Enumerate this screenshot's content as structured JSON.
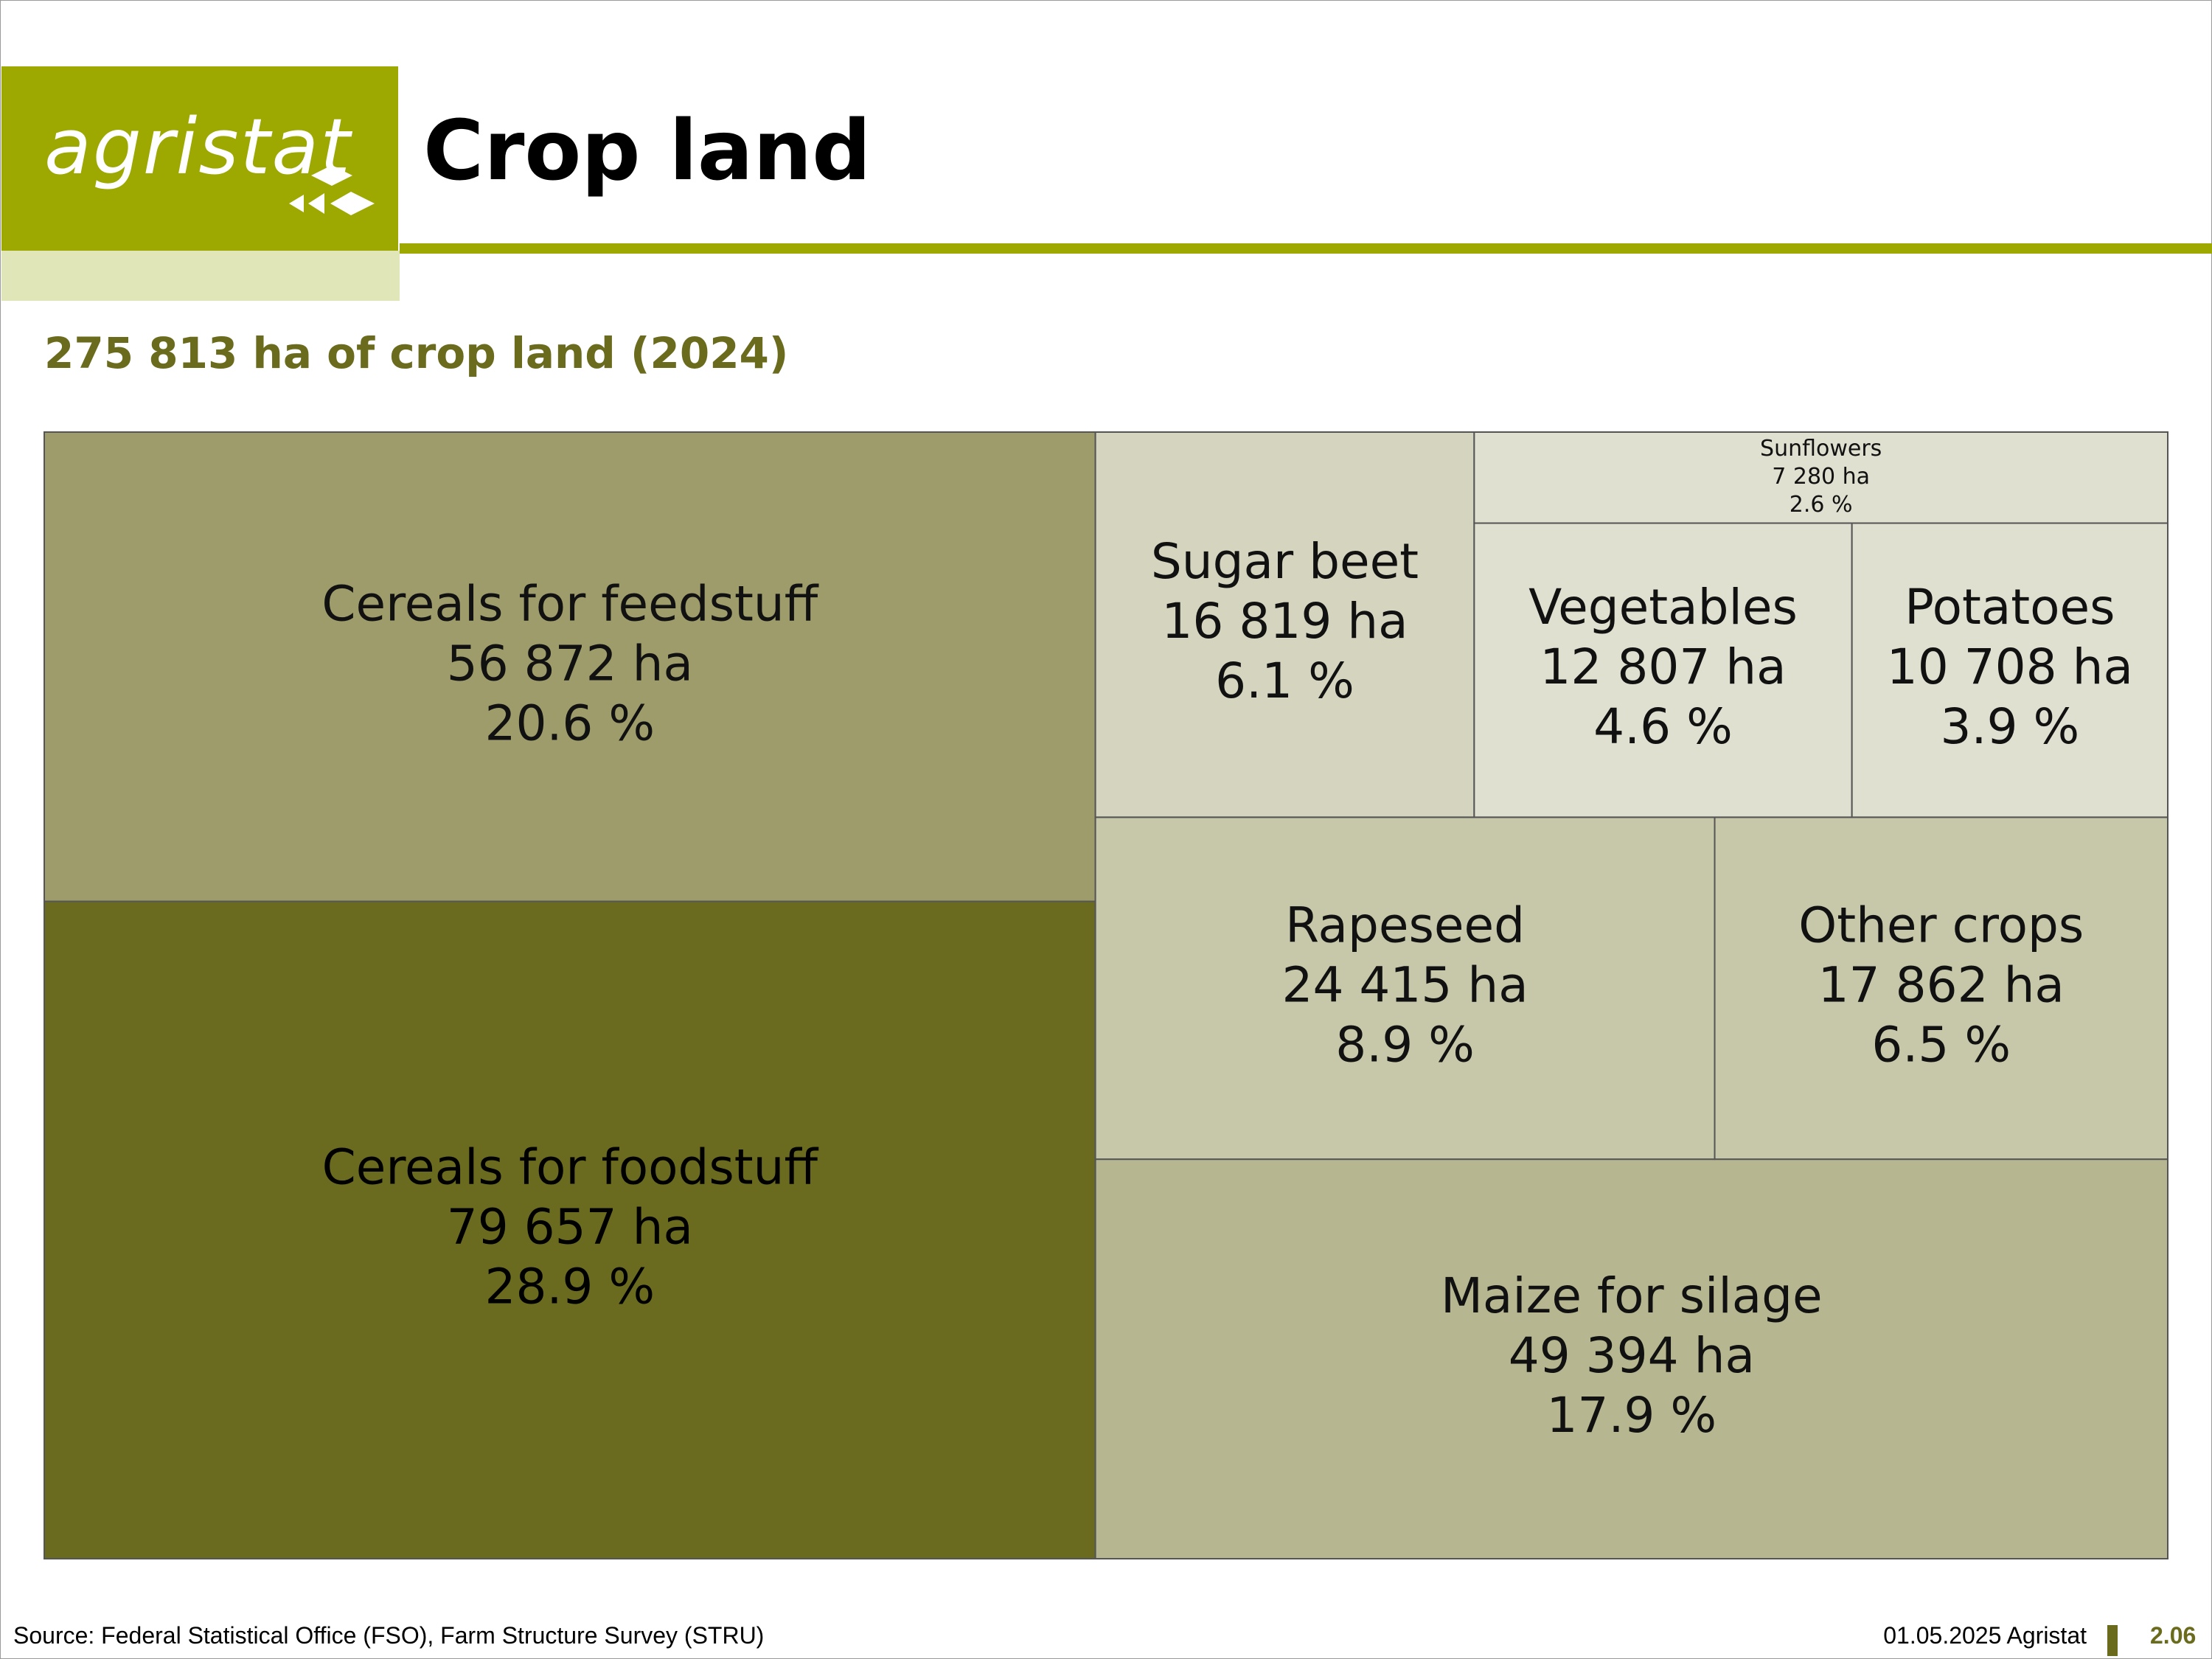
{
  "header": {
    "logo_text": "agristat",
    "title": "Crop land",
    "subtitle": "275 813 ha of crop land (2024)"
  },
  "colors": {
    "brand": "#9da800",
    "brand_light": "#e1e6b8",
    "subtitle": "#6b6b1e",
    "cereals_food": "#6b6b1f",
    "cereals_feed": "#9d9c6a",
    "maize": "#b6b690",
    "rapeseed_other": "#c7c7aa",
    "sugar_beet": "#d4d4bf",
    "small_crops": "#e0e0d1"
  },
  "chart_data": {
    "type": "treemap",
    "total_ha": 275813,
    "unit": "ha",
    "year": 2024,
    "items": [
      {
        "label": "Cereals for foodstuff",
        "value_text": "79 657 ha",
        "pct_text": "28.9 %",
        "value": 79657,
        "pct": 28.9,
        "color": "#6b6b1f"
      },
      {
        "label": "Cereals for feedstuff",
        "value_text": "56 872 ha",
        "pct_text": "20.6 %",
        "value": 56872,
        "pct": 20.6,
        "color": "#9d9c6a"
      },
      {
        "label": "Maize for silage",
        "value_text": "49 394 ha",
        "pct_text": "17.9 %",
        "value": 49394,
        "pct": 17.9,
        "color": "#b6b690"
      },
      {
        "label": "Rapeseed",
        "value_text": "24 415 ha",
        "pct_text": "8.9 %",
        "value": 24415,
        "pct": 8.9,
        "color": "#c7c7aa"
      },
      {
        "label": "Other crops",
        "value_text": "17 862 ha",
        "pct_text": "6.5 %",
        "value": 17862,
        "pct": 6.5,
        "color": "#c7c7aa"
      },
      {
        "label": "Sugar beet",
        "value_text": "16 819 ha",
        "pct_text": "6.1 %",
        "value": 16819,
        "pct": 6.1,
        "color": "#d4d4bf"
      },
      {
        "label": "Vegetables",
        "value_text": "12 807 ha",
        "pct_text": "4.6 %",
        "value": 12807,
        "pct": 4.6,
        "color": "#e0e0d1"
      },
      {
        "label": "Potatoes",
        "value_text": "10 708 ha",
        "pct_text": "3.9 %",
        "value": 10708,
        "pct": 3.9,
        "color": "#e0e0d1"
      },
      {
        "label": "Sunflowers",
        "value_text": "7 280 ha",
        "pct_text": "2.6 %",
        "value": 7280,
        "pct": 2.6,
        "color": "#e0e0d1"
      }
    ]
  },
  "footer": {
    "source": "Source: Federal Statistical Office (FSO), Farm Structure Survey (STRU)",
    "date": "01.05.2025 Agristat",
    "page": "2.06"
  }
}
